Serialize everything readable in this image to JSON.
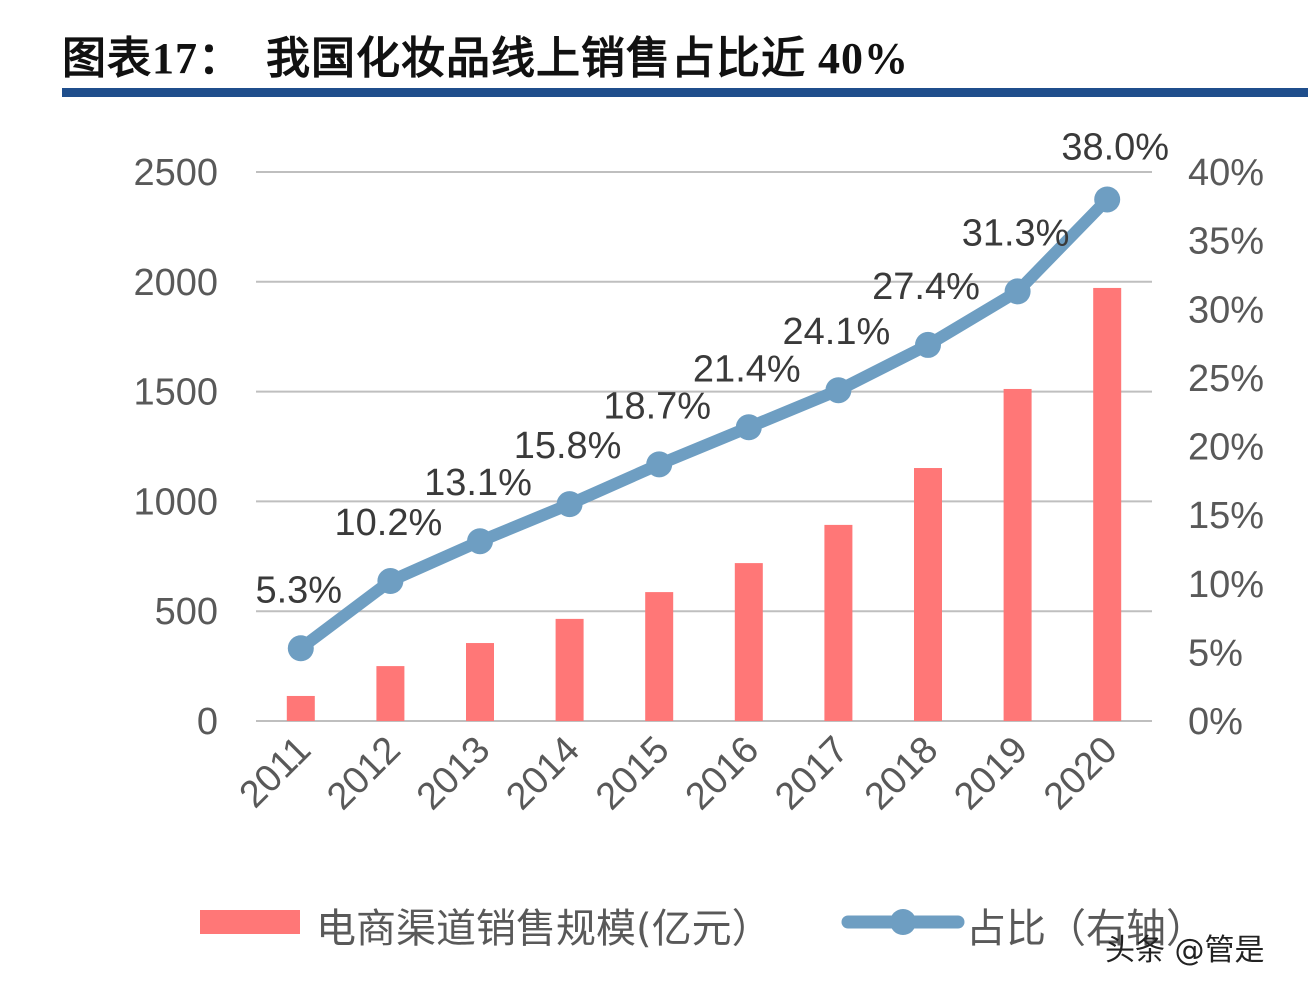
{
  "title": "图表17：　我国化妆品线上销售占比近 40%",
  "watermark": "头条 @管是",
  "colors": {
    "bar": "#ff7777",
    "line": "#6e9ec2",
    "grid": "#bfbfbf",
    "rule": "#1f4e8c"
  },
  "chart_data": {
    "type": "bar+line",
    "title": "我国化妆品线上销售占比近 40%",
    "categories": [
      "2011",
      "2012",
      "2013",
      "2014",
      "2015",
      "2016",
      "2017",
      "2018",
      "2019",
      "2020"
    ],
    "series": [
      {
        "name": "电商渠道销售规模(亿元）",
        "type": "bar",
        "axis": "left",
        "values": [
          114,
          250,
          355,
          465,
          587,
          719,
          893,
          1152,
          1512,
          1972
        ]
      },
      {
        "name": "占比（右轴）",
        "type": "line",
        "axis": "right",
        "values": [
          5.3,
          10.2,
          13.1,
          15.8,
          18.7,
          21.4,
          24.1,
          27.4,
          31.3,
          38.0
        ],
        "labels": [
          "5.3%",
          "10.2%",
          "13.1%",
          "15.8%",
          "18.7%",
          "21.4%",
          "24.1%",
          "27.4%",
          "31.3%",
          "38.0%"
        ]
      }
    ],
    "y_left": {
      "min": 0,
      "max": 2500,
      "ticks": [
        "0",
        "500",
        "1000",
        "1500",
        "2000",
        "2500"
      ]
    },
    "y_right": {
      "min": 0,
      "max": 40,
      "ticks": [
        "0%",
        "5%",
        "10%",
        "15%",
        "20%",
        "25%",
        "30%",
        "35%",
        "40%"
      ]
    },
    "grid": true,
    "legend_position": "bottom",
    "xlabel": "",
    "ylabel": ""
  }
}
